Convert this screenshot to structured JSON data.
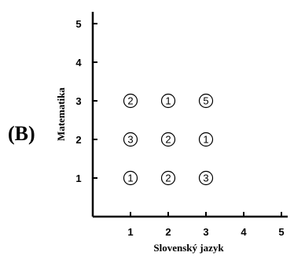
{
  "panel_label": "(B)",
  "chart_data": {
    "type": "scatter",
    "xlabel": "Slovenský jazyk",
    "ylabel": "Matematika",
    "xlim": [
      0,
      5
    ],
    "ylim": [
      0,
      5
    ],
    "xticks": [
      1,
      2,
      3,
      4,
      5
    ],
    "yticks": [
      1,
      2,
      3,
      4,
      5
    ],
    "grid": false,
    "marker": "circle-with-count",
    "points": [
      {
        "x": 1,
        "y": 3,
        "label": "2"
      },
      {
        "x": 2,
        "y": 3,
        "label": "1"
      },
      {
        "x": 3,
        "y": 3,
        "label": "5"
      },
      {
        "x": 1,
        "y": 2,
        "label": "3"
      },
      {
        "x": 2,
        "y": 2,
        "label": "2"
      },
      {
        "x": 3,
        "y": 2,
        "label": "1"
      },
      {
        "x": 1,
        "y": 1,
        "label": "1"
      },
      {
        "x": 2,
        "y": 1,
        "label": "2"
      },
      {
        "x": 3,
        "y": 1,
        "label": "3"
      }
    ]
  }
}
